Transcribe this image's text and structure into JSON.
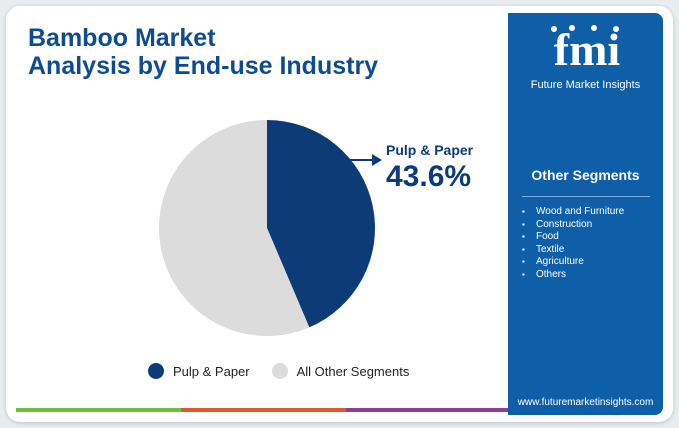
{
  "title": {
    "line1": "Bamboo Market",
    "line2": "Analysis by End-use Industry"
  },
  "chart_data": {
    "type": "pie",
    "title": "Bamboo Market Analysis by End-use Industry",
    "slices": [
      {
        "label": "Pulp & Paper",
        "value": 43.6,
        "color": "#0d3b78"
      },
      {
        "label": "All Other Segments",
        "value": 56.4,
        "color": "#dcdcdc"
      }
    ],
    "callout": {
      "label": "Pulp & Paper",
      "value_text": "43.6%"
    },
    "legend_position": "bottom"
  },
  "legend": [
    {
      "label": "Pulp & Paper",
      "color": "#0d3b78"
    },
    {
      "label": "All Other Segments",
      "color": "#dcdcdc"
    }
  ],
  "panel": {
    "logo_text": "fmi",
    "brand": "Future Market Insights",
    "segments_title": "Other Segments",
    "segments": [
      "Wood and Furniture",
      "Construction",
      "Food",
      "Textile",
      "Agriculture",
      "Others"
    ],
    "website": "www.futuremarketinsights.com"
  },
  "colors": {
    "accent": "#0f5ea8",
    "primary": "#0d3b78",
    "bar": [
      "#6dbf3b",
      "#e0592a",
      "#8e3f93"
    ]
  }
}
